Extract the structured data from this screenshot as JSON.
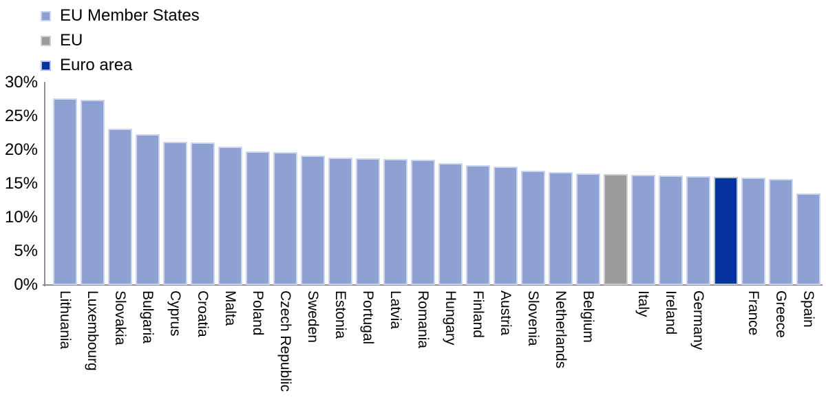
{
  "legend": {
    "items": [
      {
        "label": "EU Member States",
        "fill": "#8CA0D2",
        "border": "#CDD6EE"
      },
      {
        "label": "EU",
        "fill": "#9B9B9B",
        "border": "#CDCDCD"
      },
      {
        "label": "Euro area",
        "fill": "#0633A0",
        "border": "#B7C4EA"
      }
    ]
  },
  "y_axis": {
    "tick_labels": [
      "30%",
      "25%",
      "20%",
      "15%",
      "10%",
      "5%",
      "0%"
    ]
  },
  "chart_data": {
    "type": "bar",
    "title": "",
    "xlabel": "",
    "ylabel": "",
    "unit": "%",
    "ylim": [
      0,
      30
    ],
    "ytick_step": 5,
    "grid": false,
    "legend_position": "top-left",
    "axis_color": "#8f8f8f",
    "bars": [
      {
        "category": "Lithuania",
        "series": "EU Member States",
        "value": 27.7
      },
      {
        "category": "Luxembourg",
        "series": "EU Member States",
        "value": 27.4
      },
      {
        "category": "Slovakia",
        "series": "EU Member States",
        "value": 23.2
      },
      {
        "category": "Bulgaria",
        "series": "EU Member States",
        "value": 22.3
      },
      {
        "category": "Cyprus",
        "series": "EU Member States",
        "value": 21.2
      },
      {
        "category": "Croatia",
        "series": "EU Member States",
        "value": 21.1
      },
      {
        "category": "Malta",
        "series": "EU Member States",
        "value": 20.5
      },
      {
        "category": "Poland",
        "series": "EU Member States",
        "value": 19.8
      },
      {
        "category": "Czech Republic",
        "series": "EU Member States",
        "value": 19.7
      },
      {
        "category": "Sweden",
        "series": "EU Member States",
        "value": 19.2
      },
      {
        "category": "Estonia",
        "series": "EU Member States",
        "value": 18.9
      },
      {
        "category": "Portugal",
        "series": "EU Member States",
        "value": 18.8
      },
      {
        "category": "Latvia",
        "series": "EU Member States",
        "value": 18.7
      },
      {
        "category": "Romania",
        "series": "EU Member States",
        "value": 18.6
      },
      {
        "category": "Hungary",
        "series": "EU Member States",
        "value": 18.1
      },
      {
        "category": "Finland",
        "series": "EU Member States",
        "value": 17.8
      },
      {
        "category": "Austria",
        "series": "EU Member States",
        "value": 17.6
      },
      {
        "category": "Slovenia",
        "series": "EU Member States",
        "value": 16.9
      },
      {
        "category": "Netherlands",
        "series": "EU Member States",
        "value": 16.7
      },
      {
        "category": "Belgium",
        "series": "EU Member States",
        "value": 16.5
      },
      {
        "category": "",
        "series": "EU",
        "value": 16.4
      },
      {
        "category": "Italy",
        "series": "EU Member States",
        "value": 16.3
      },
      {
        "category": "Ireland",
        "series": "EU Member States",
        "value": 16.2
      },
      {
        "category": "Germany",
        "series": "EU Member States",
        "value": 16.1
      },
      {
        "category": "",
        "series": "Euro area",
        "value": 16.0
      },
      {
        "category": "France",
        "series": "EU Member States",
        "value": 15.9
      },
      {
        "category": "Greece",
        "series": "EU Member States",
        "value": 15.7
      },
      {
        "category": "Spain",
        "series": "EU Member States",
        "value": 13.6
      }
    ]
  }
}
